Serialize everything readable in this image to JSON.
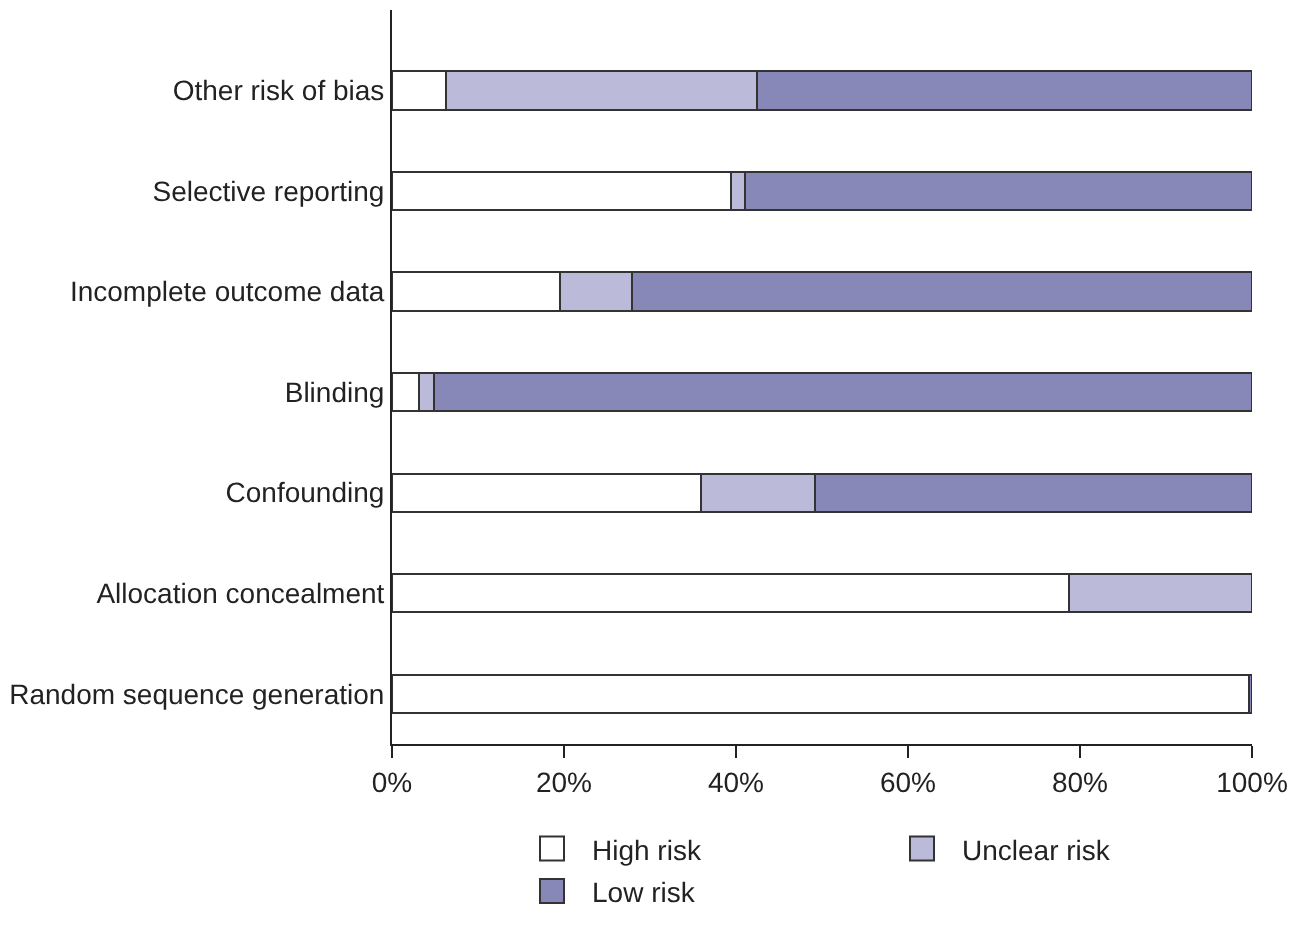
{
  "chart_data": {
    "type": "bar",
    "orientation": "horizontal",
    "stacked": true,
    "categories": [
      "Other risk of bias",
      "Selective reporting",
      "Incomplete outcome data",
      "Blinding",
      "Confounding",
      "Allocation concealment",
      "Random sequence generation"
    ],
    "series": [
      {
        "name": "High risk",
        "color": "#ffffff",
        "values": [
          6.3,
          39.4,
          19.5,
          3.1,
          35.9,
          78.7,
          99.6
        ]
      },
      {
        "name": "Unclear risk",
        "color": "#bbbbd9",
        "values": [
          36.1,
          1.7,
          8.4,
          1.8,
          13.3,
          21.3,
          null
        ]
      },
      {
        "name": "Low risk",
        "color": "#8787b8",
        "values": [
          57.6,
          58.9,
          72.1,
          95.1,
          50.8,
          null,
          0.4
        ]
      }
    ],
    "xlim": [
      0,
      100
    ],
    "xticks": [
      {
        "value": 0,
        "label": "0%"
      },
      {
        "value": 20,
        "label": "20%"
      },
      {
        "value": 40,
        "label": "40%"
      },
      {
        "value": 60,
        "label": "60%"
      },
      {
        "value": 80,
        "label": "80%"
      },
      {
        "value": 100,
        "label": "100%"
      }
    ],
    "legend": "bottom"
  }
}
